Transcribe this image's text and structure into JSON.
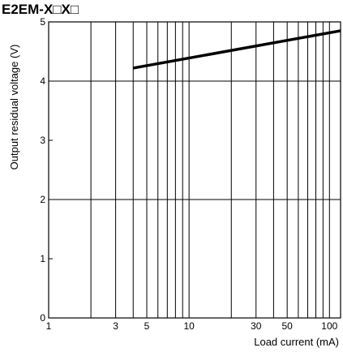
{
  "chart_data": {
    "type": "line",
    "title": "E2EM-X□X□",
    "xlabel": "Load current (mA)",
    "ylabel": "Output residual voltage (V)",
    "xscale": "log",
    "xlim": [
      1,
      120
    ],
    "ylim": [
      0,
      5
    ],
    "x_tick_labels": [
      "1",
      "3",
      "5",
      "10",
      "30",
      "50",
      "100"
    ],
    "x_tick_values": [
      1,
      3,
      5,
      10,
      30,
      50,
      100
    ],
    "y_tick_labels": [
      "0",
      "1",
      "2",
      "3",
      "4",
      "5"
    ],
    "y_tick_values": [
      0,
      1,
      2,
      3,
      4,
      5
    ],
    "x_gridlines": [
      1,
      2,
      3,
      4,
      5,
      6,
      7,
      8,
      9,
      10,
      20,
      30,
      40,
      50,
      60,
      70,
      80,
      90,
      100
    ],
    "y_gridlines": [
      0,
      2,
      4
    ],
    "grid": true,
    "series": [
      {
        "x": [
          4,
          120
        ],
        "y": [
          4.22,
          4.85
        ]
      }
    ],
    "colors": {
      "line": "#000000",
      "grid": "#000000"
    }
  }
}
